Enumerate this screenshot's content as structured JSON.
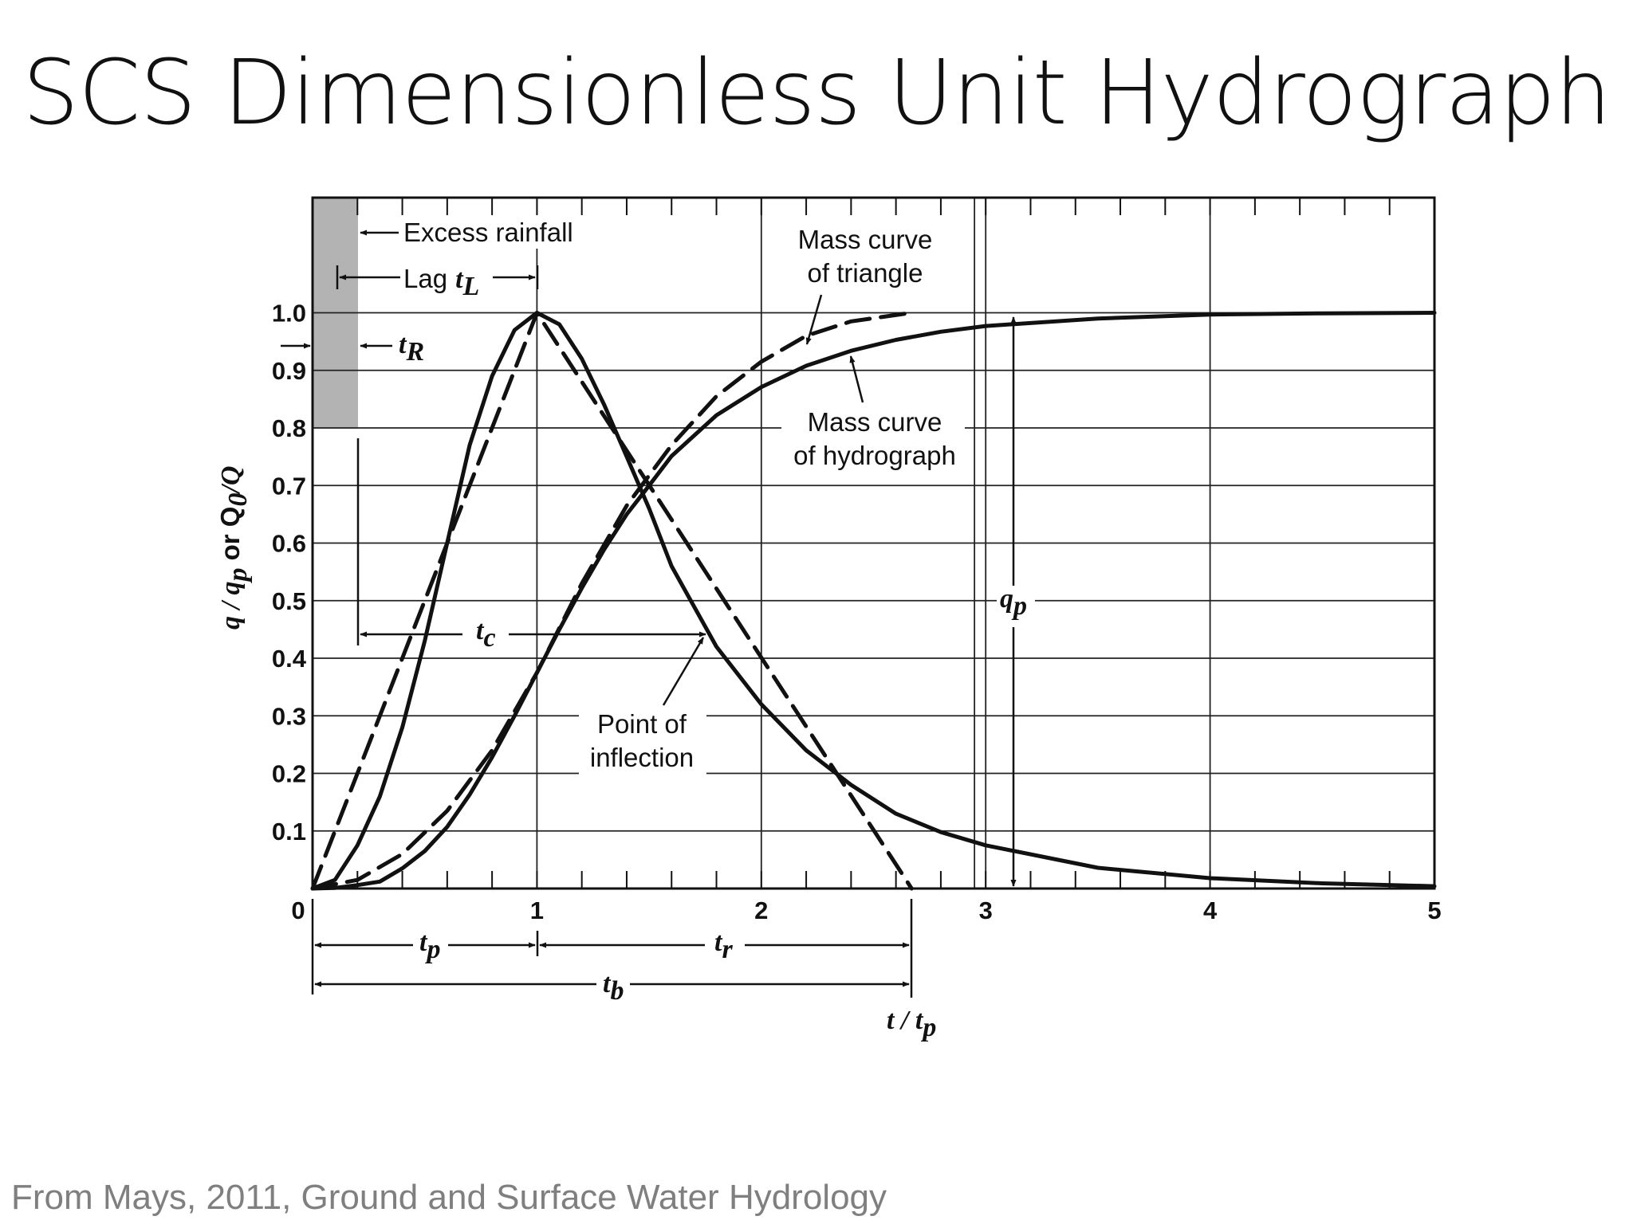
{
  "title": "SCS Dimensionless Unit Hydrograph",
  "caption": "From Mays, 2011, Ground and Surface Water Hydrology",
  "chart_data": {
    "type": "line",
    "xlabel": "t/tp",
    "ylabel": "q/qp or Q0/Q",
    "xlim": [
      0,
      5
    ],
    "ylim": [
      0,
      1.0
    ],
    "x_ticks": [
      "0",
      "1",
      "2",
      "3",
      "4",
      "5"
    ],
    "y_ticks": [
      "0.1",
      "0.2",
      "0.3",
      "0.4",
      "0.5",
      "0.6",
      "0.7",
      "0.8",
      "0.9",
      "1.0"
    ],
    "grid": true,
    "series": [
      {
        "style": "solid",
        "points": [
          [
            0,
            0
          ],
          [
            0.1,
            0.015
          ],
          [
            0.2,
            0.075
          ],
          [
            0.3,
            0.16
          ],
          [
            0.4,
            0.28
          ],
          [
            0.5,
            0.43
          ],
          [
            0.6,
            0.6
          ],
          [
            0.7,
            0.77
          ],
          [
            0.8,
            0.89
          ],
          [
            0.9,
            0.97
          ],
          [
            1.0,
            1.0
          ],
          [
            1.1,
            0.98
          ],
          [
            1.2,
            0.92
          ],
          [
            1.3,
            0.84
          ],
          [
            1.4,
            0.75
          ],
          [
            1.5,
            0.66
          ],
          [
            1.6,
            0.56
          ],
          [
            1.8,
            0.42
          ],
          [
            2.0,
            0.32
          ],
          [
            2.2,
            0.24
          ],
          [
            2.4,
            0.18
          ],
          [
            2.6,
            0.13
          ],
          [
            2.8,
            0.098
          ],
          [
            3.0,
            0.075
          ],
          [
            3.5,
            0.036
          ],
          [
            4.0,
            0.018
          ],
          [
            4.5,
            0.009
          ],
          [
            5.0,
            0.004
          ]
        ]
      },
      {
        "style": "dashed",
        "points": [
          [
            0,
            0
          ],
          [
            1.0,
            1.0
          ],
          [
            2.67,
            0
          ]
        ]
      },
      {
        "style": "solid",
        "points": [
          [
            0,
            0
          ],
          [
            0.1,
            0.001
          ],
          [
            0.2,
            0.006
          ],
          [
            0.3,
            0.012
          ],
          [
            0.4,
            0.035
          ],
          [
            0.5,
            0.065
          ],
          [
            0.6,
            0.107
          ],
          [
            0.7,
            0.163
          ],
          [
            0.8,
            0.228
          ],
          [
            0.9,
            0.3
          ],
          [
            1.0,
            0.375
          ],
          [
            1.1,
            0.45
          ],
          [
            1.2,
            0.522
          ],
          [
            1.3,
            0.589
          ],
          [
            1.4,
            0.65
          ],
          [
            1.5,
            0.7
          ],
          [
            1.6,
            0.751
          ],
          [
            1.8,
            0.822
          ],
          [
            2.0,
            0.871
          ],
          [
            2.2,
            0.908
          ],
          [
            2.4,
            0.934
          ],
          [
            2.6,
            0.953
          ],
          [
            2.8,
            0.967
          ],
          [
            3.0,
            0.977
          ],
          [
            3.5,
            0.99
          ],
          [
            4.0,
            0.997
          ],
          [
            4.5,
            0.999
          ],
          [
            5.0,
            1.0
          ]
        ]
      },
      {
        "style": "dashed",
        "points": [
          [
            0,
            0
          ],
          [
            0.2,
            0.015
          ],
          [
            0.4,
            0.06
          ],
          [
            0.6,
            0.135
          ],
          [
            0.8,
            0.24
          ],
          [
            1.0,
            0.375
          ],
          [
            1.2,
            0.53
          ],
          [
            1.4,
            0.665
          ],
          [
            1.6,
            0.77
          ],
          [
            1.8,
            0.855
          ],
          [
            2.0,
            0.915
          ],
          [
            2.2,
            0.96
          ],
          [
            2.4,
            0.985
          ],
          [
            2.67,
            1.0
          ]
        ]
      }
    ],
    "annotations": {
      "excess_rainfall": "Excess rainfall",
      "lag": "Lag",
      "lag_sym": "t",
      "lag_sub": "L",
      "tr_sym": "t",
      "tr_sub": "R",
      "mass_triangle_1": "Mass curve",
      "mass_triangle_2": "of triangle",
      "mass_hydro_1": "Mass curve",
      "mass_hydro_2": "of hydrograph",
      "tc_sym": "t",
      "tc_sub": "c",
      "qp_sym": "q",
      "qp_sub": "p",
      "inflection_1": "Point of",
      "inflection_2": "inflection",
      "tp_sym": "t",
      "tp_sub": "p",
      "trr_sym": "t",
      "trr_sub": "r",
      "tb_sym": "t",
      "tb_sub": "b",
      "xaxis_label": "t / t",
      "xaxis_sub": "p",
      "yaxis_label": "q / q",
      "yaxis_sub": "p",
      "yaxis_mid": " or Q",
      "yaxis_sub2": "0",
      "yaxis_end": "/Q"
    }
  }
}
